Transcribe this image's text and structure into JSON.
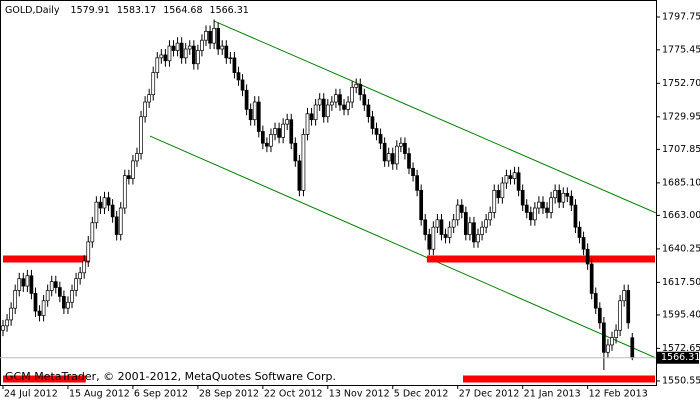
{
  "chart_data": {
    "type": "candlestick",
    "symbol": "GOLD,Daily",
    "footer": "GCM MetaTrader, © 2001-2012, MetaQuotes Software Corp.",
    "up_color": "#ffffff",
    "down_color": "#000000",
    "open": [
      1585,
      1588,
      1592,
      1600,
      1612,
      1620,
      1615,
      1622,
      1610,
      1598,
      1595,
      1605,
      1612,
      1618,
      1614,
      1608,
      1600,
      1604,
      1612,
      1620,
      1624,
      1632,
      1645,
      1658,
      1672,
      1668,
      1675,
      1670,
      1662,
      1650,
      1668,
      1690,
      1688,
      1700,
      1705,
      1730,
      1740,
      1745,
      1760,
      1770,
      1772,
      1768,
      1778,
      1775,
      1780,
      1770,
      1776,
      1778,
      1766,
      1775,
      1782,
      1788,
      1780,
      1790,
      1776,
      1778,
      1770,
      1770,
      1760,
      1755,
      1748,
      1735,
      1728,
      1740,
      1720,
      1712,
      1710,
      1718,
      1722,
      1716,
      1725,
      1728,
      1712,
      1700,
      1680,
      1718,
      1732,
      1728,
      1738,
      1742,
      1730,
      1738,
      1740,
      1745,
      1738,
      1735,
      1740,
      1750,
      1752,
      1745,
      1738,
      1730,
      1722,
      1718,
      1712,
      1700,
      1705,
      1698,
      1710,
      1712,
      1705,
      1695,
      1690,
      1680,
      1660,
      1650,
      1640,
      1655,
      1660,
      1650,
      1648,
      1655,
      1660,
      1670,
      1665,
      1650,
      1658,
      1645,
      1650,
      1655,
      1660,
      1665,
      1680,
      1675,
      1685,
      1690,
      1688,
      1692,
      1680,
      1670,
      1665,
      1660,
      1668,
      1672,
      1668,
      1665,
      1675,
      1680,
      1672,
      1678,
      1676,
      1670,
      1655,
      1648,
      1640,
      1630,
      1610,
      1600,
      1590,
      1570,
      1575,
      1580,
      1585,
      1605,
      1612,
      1579.91
    ],
    "high": [
      1592,
      1596,
      1604,
      1616,
      1624,
      1624,
      1626,
      1626,
      1614,
      1602,
      1609,
      1616,
      1622,
      1622,
      1618,
      1612,
      1608,
      1616,
      1624,
      1628,
      1636,
      1649,
      1662,
      1676,
      1676,
      1679,
      1679,
      1674,
      1666,
      1672,
      1694,
      1694,
      1704,
      1709,
      1734,
      1744,
      1749,
      1764,
      1774,
      1776,
      1776,
      1782,
      1782,
      1784,
      1784,
      1780,
      1782,
      1782,
      1779,
      1786,
      1792,
      1792,
      1796,
      1794,
      1782,
      1782,
      1774,
      1774,
      1764,
      1759,
      1752,
      1739,
      1744,
      1744,
      1724,
      1716,
      1722,
      1726,
      1726,
      1729,
      1732,
      1732,
      1716,
      1704,
      1722,
      1736,
      1736,
      1742,
      1746,
      1746,
      1742,
      1744,
      1749,
      1749,
      1742,
      1744,
      1754,
      1756,
      1756,
      1749,
      1742,
      1734,
      1726,
      1722,
      1716,
      1709,
      1709,
      1714,
      1716,
      1716,
      1709,
      1699,
      1694,
      1684,
      1664,
      1654,
      1659,
      1664,
      1664,
      1654,
      1659,
      1664,
      1674,
      1674,
      1669,
      1662,
      1662,
      1654,
      1659,
      1664,
      1669,
      1684,
      1684,
      1689,
      1694,
      1694,
      1696,
      1696,
      1684,
      1674,
      1669,
      1672,
      1676,
      1676,
      1672,
      1679,
      1684,
      1684,
      1682,
      1682,
      1680,
      1674,
      1659,
      1652,
      1644,
      1634,
      1614,
      1604,
      1594,
      1579,
      1584,
      1589,
      1609,
      1616,
      1616,
      1583.17
    ],
    "low": [
      1581,
      1584,
      1588,
      1596,
      1608,
      1611,
      1611,
      1606,
      1594,
      1591,
      1591,
      1601,
      1608,
      1610,
      1604,
      1596,
      1596,
      1600,
      1608,
      1616,
      1620,
      1628,
      1641,
      1654,
      1664,
      1664,
      1666,
      1658,
      1646,
      1646,
      1664,
      1684,
      1684,
      1696,
      1701,
      1726,
      1736,
      1741,
      1756,
      1766,
      1764,
      1764,
      1771,
      1771,
      1766,
      1766,
      1772,
      1762,
      1762,
      1771,
      1778,
      1776,
      1776,
      1772,
      1772,
      1766,
      1766,
      1756,
      1751,
      1744,
      1731,
      1724,
      1724,
      1716,
      1708,
      1706,
      1706,
      1714,
      1712,
      1712,
      1721,
      1708,
      1696,
      1676,
      1676,
      1714,
      1724,
      1724,
      1734,
      1726,
      1726,
      1734,
      1736,
      1734,
      1731,
      1731,
      1736,
      1746,
      1741,
      1734,
      1726,
      1718,
      1714,
      1708,
      1696,
      1696,
      1694,
      1694,
      1706,
      1701,
      1691,
      1686,
      1676,
      1656,
      1646,
      1636,
      1636,
      1651,
      1646,
      1644,
      1644,
      1651,
      1656,
      1661,
      1646,
      1646,
      1641,
      1641,
      1646,
      1651,
      1656,
      1661,
      1671,
      1671,
      1681,
      1684,
      1684,
      1676,
      1666,
      1661,
      1656,
      1656,
      1664,
      1664,
      1661,
      1661,
      1671,
      1668,
      1668,
      1672,
      1666,
      1651,
      1644,
      1636,
      1626,
      1606,
      1596,
      1586,
      1558,
      1566,
      1571,
      1576,
      1581,
      1601,
      1586,
      1564.68
    ],
    "close": [
      1588,
      1592,
      1600,
      1612,
      1620,
      1615,
      1622,
      1610,
      1598,
      1595,
      1605,
      1612,
      1618,
      1614,
      1608,
      1600,
      1604,
      1612,
      1620,
      1624,
      1632,
      1645,
      1658,
      1672,
      1668,
      1675,
      1670,
      1662,
      1650,
      1668,
      1690,
      1688,
      1700,
      1705,
      1730,
      1740,
      1745,
      1760,
      1770,
      1772,
      1768,
      1778,
      1775,
      1780,
      1770,
      1776,
      1778,
      1766,
      1775,
      1782,
      1788,
      1780,
      1790,
      1776,
      1778,
      1770,
      1770,
      1760,
      1755,
      1748,
      1735,
      1728,
      1740,
      1720,
      1712,
      1710,
      1718,
      1722,
      1716,
      1725,
      1728,
      1712,
      1700,
      1680,
      1718,
      1732,
      1728,
      1738,
      1742,
      1730,
      1738,
      1740,
      1745,
      1738,
      1735,
      1740,
      1750,
      1752,
      1745,
      1738,
      1730,
      1722,
      1718,
      1712,
      1700,
      1705,
      1698,
      1710,
      1712,
      1705,
      1695,
      1690,
      1680,
      1660,
      1650,
      1640,
      1655,
      1660,
      1650,
      1648,
      1655,
      1660,
      1670,
      1665,
      1650,
      1658,
      1645,
      1650,
      1655,
      1660,
      1665,
      1680,
      1675,
      1685,
      1690,
      1688,
      1692,
      1680,
      1670,
      1665,
      1660,
      1668,
      1672,
      1668,
      1665,
      1675,
      1680,
      1672,
      1678,
      1676,
      1670,
      1655,
      1648,
      1640,
      1630,
      1610,
      1600,
      1590,
      1570,
      1575,
      1580,
      1585,
      1605,
      1612,
      1590,
      1566.31
    ],
    "xlim": [
      -0.74,
      160.84
    ],
    "ylim": [
      1547.8,
      1809.3
    ],
    "xticks": [
      {
        "value": 0,
        "label": "24 Jul 2012"
      },
      {
        "value": 16,
        "label": "15 Aug 2012"
      },
      {
        "value": 32,
        "label": "6 Sep 2012"
      },
      {
        "value": 48,
        "label": "28 Sep 2012"
      },
      {
        "value": 64,
        "label": "22 Oct 2012"
      },
      {
        "value": 80,
        "label": "13 Nov 2012"
      },
      {
        "value": 96,
        "label": "5 Dec 2012"
      },
      {
        "value": 112,
        "label": "27 Dec 2012"
      },
      {
        "value": 128,
        "label": "21 Jan 2013"
      },
      {
        "value": 144,
        "label": "12 Feb 2013"
      }
    ],
    "yticks": [
      1797.75,
      1775.45,
      {
        "value": 1752.7,
        "label": "1752.70"
      },
      1729.95,
      1707.85,
      {
        "value": 1685.1,
        "label": "1685.10"
      },
      {
        "value": 1663,
        "label": "1663.00"
      },
      1640.25,
      {
        "value": 1617.5,
        "label": "1617.50"
      },
      {
        "value": 1595.4,
        "label": "1595.40"
      },
      1572.65,
      1550.55
    ],
    "lines": [
      {
        "x": [
          52,
          160.8
        ],
        "y": [
          1795,
          1664.7
        ],
        "color": "#008000",
        "width": 1
      },
      {
        "x": [
          36.2,
          160.8
        ],
        "y": [
          1716.9,
          1566.2
        ],
        "color": "#008000",
        "width": 1
      },
      {
        "x": [
          0,
          21.4
        ],
        "y": [
          1633.4,
          1633.4
        ],
        "color": "#ff0000",
        "width": 7
      },
      {
        "x": [
          0,
          20.4
        ],
        "y": [
          1551.9,
          1551.9
        ],
        "color": "#ff0000",
        "width": 7
      },
      {
        "x": [
          104.4,
          160.6
        ],
        "y": [
          1633.4,
          1633.4
        ],
        "color": "#ff0000",
        "width": 7
      },
      {
        "x": [
          113.3,
          160.6
        ],
        "y": [
          1551.9,
          1551.9
        ],
        "color": "#ff0000",
        "width": 7
      }
    ]
  }
}
